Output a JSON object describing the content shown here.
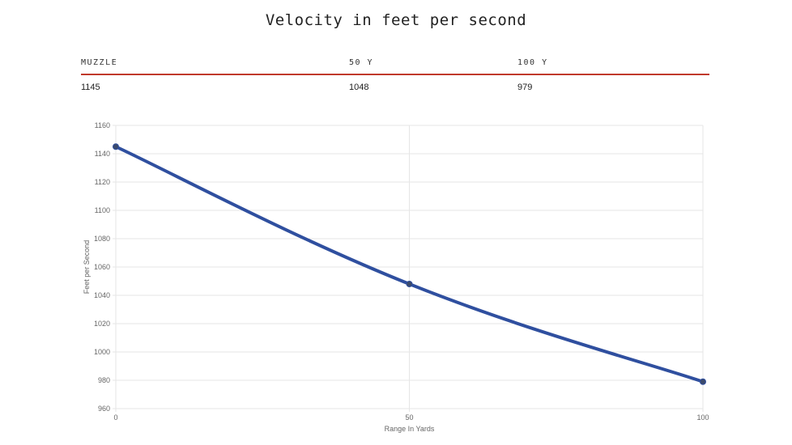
{
  "title": "Velocity in feet per second",
  "table": {
    "headers": [
      "MUZZLE",
      "50 Y",
      "100 Y"
    ],
    "values": [
      "1145",
      "1048",
      "979"
    ]
  },
  "chart_data": {
    "type": "line",
    "x": [
      0,
      50,
      100
    ],
    "series": [
      {
        "values": [
          1145,
          1048,
          979
        ],
        "color": "#2f4f9f"
      }
    ],
    "xlabel": "Range In Yards",
    "ylabel": "Feet per Second",
    "xlim": [
      0,
      100
    ],
    "ylim": [
      960,
      1160
    ],
    "xticks": [
      0,
      50,
      100
    ],
    "yticks": [
      960,
      980,
      1000,
      1020,
      1040,
      1060,
      1080,
      1100,
      1120,
      1140,
      1160
    ],
    "grid": true,
    "legend": "none"
  }
}
